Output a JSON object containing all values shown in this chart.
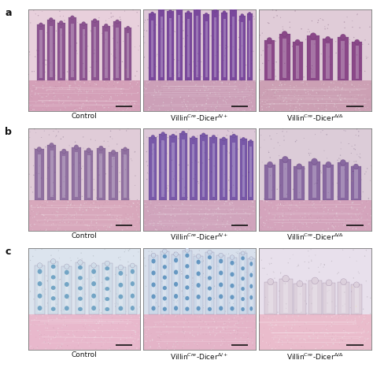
{
  "figure_width": 4.74,
  "figure_height": 4.76,
  "dpi": 100,
  "background_color": "#ffffff",
  "panel_labels": [
    "a",
    "b",
    "c"
  ],
  "panel_label_fontsize": 9,
  "panel_label_fontweight": "bold",
  "col_labels": [
    "Control",
    "Villin$^{Cre}$-Dicer$^{Δ/+}$",
    "Villin$^{Cre}$-Dicer$^{Δ/Δ}$"
  ],
  "col_label_fontsize": 6.5,
  "scale_bar_color": "#111111",
  "border_color": "#777777",
  "border_linewidth": 0.6,
  "row_a_bg": [
    "#e8d0dc",
    "#dfc8d8",
    "#e0ccd8"
  ],
  "row_a_bottom": [
    "#d4a0b8",
    "#cca0b8",
    "#cca0b4"
  ],
  "row_a_villi_fill": [
    "#8c5490",
    "#7a489c",
    "#8a4888"
  ],
  "row_b_bg": [
    "#e0ccd8",
    "#ddc8d8",
    "#dcccd8"
  ],
  "row_b_bottom": [
    "#d8a8bc",
    "#d0a4bc",
    "#d4a4bc"
  ],
  "row_b_villi_fill": [
    "#9070a0",
    "#7858a8",
    "#8868a0"
  ],
  "row_c_bg": [
    "#dce4ee",
    "#d8e0ec",
    "#e8e0ec"
  ],
  "row_c_bottom": [
    "#e8b8cc",
    "#e4b4c8",
    "#eabccc"
  ],
  "row_c_villi_fill": [
    "#d0dce8",
    "#ccd8e8",
    "#dcd0dc"
  ],
  "row_c_alcian": [
    "#5090b8",
    "#4080b4",
    "#9090a8"
  ]
}
